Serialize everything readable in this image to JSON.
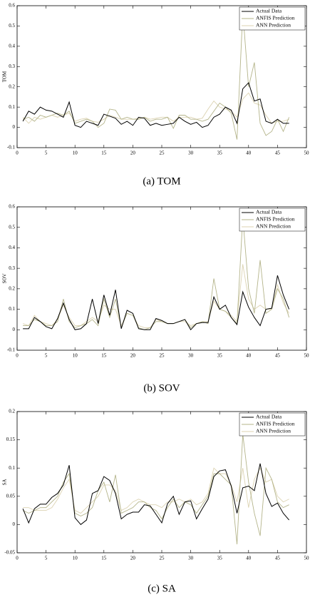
{
  "chart_data": [
    {
      "type": "line",
      "ylabel": "TOM",
      "caption": "(a) TOM",
      "legend": "upper right",
      "xlim": [
        0,
        50
      ],
      "ylim": [
        -0.1,
        0.6
      ],
      "xticks": [
        0,
        5,
        10,
        15,
        20,
        25,
        30,
        35,
        40,
        45,
        50
      ],
      "yticks": [
        -0.1,
        0,
        0.1,
        0.2,
        0.3,
        0.4,
        0.5,
        0.6
      ],
      "x": [
        1,
        2,
        3,
        4,
        5,
        6,
        7,
        8,
        9,
        10,
        11,
        12,
        13,
        14,
        15,
        16,
        17,
        18,
        19,
        20,
        21,
        22,
        23,
        24,
        25,
        26,
        27,
        28,
        29,
        30,
        31,
        32,
        33,
        34,
        35,
        36,
        37,
        38,
        39,
        40,
        41,
        42,
        43,
        44,
        45,
        46,
        47
      ],
      "series": [
        {
          "name": "Actual Data",
          "color": "#000000",
          "values": [
            0.03,
            0.08,
            0.065,
            0.1,
            0.085,
            0.08,
            0.065,
            0.05,
            0.125,
            0.01,
            0.0,
            0.03,
            0.02,
            0.01,
            0.065,
            0.055,
            0.045,
            0.015,
            0.03,
            0.01,
            0.05,
            0.045,
            0.01,
            0.02,
            0.01,
            0.015,
            0.02,
            0.05,
            0.03,
            0.015,
            0.025,
            0.0,
            0.01,
            0.05,
            0.065,
            0.1,
            0.085,
            0.02,
            0.19,
            0.22,
            0.13,
            0.14,
            0.03,
            0.02,
            0.04,
            0.02,
            0.02
          ]
        },
        {
          "name": "ANFIS Prediction",
          "color": "#b4b48a",
          "values": [
            0.04,
            0.05,
            0.03,
            0.06,
            0.05,
            0.06,
            0.07,
            0.06,
            0.08,
            0.02,
            0.03,
            0.04,
            0.03,
            0.0,
            0.02,
            0.09,
            0.085,
            0.04,
            0.05,
            0.04,
            0.04,
            0.05,
            0.03,
            0.04,
            0.04,
            0.05,
            -0.005,
            0.06,
            0.06,
            0.04,
            0.04,
            0.03,
            0.04,
            0.08,
            0.12,
            0.1,
            0.07,
            -0.06,
            0.57,
            0.2,
            0.32,
            0.02,
            -0.04,
            -0.02,
            0.04,
            -0.02,
            0.05
          ]
        },
        {
          "name": "ANN Prediction",
          "color": "#dcd3b2",
          "values": [
            0.05,
            0.02,
            0.05,
            0.04,
            0.05,
            0.06,
            0.05,
            0.06,
            0.07,
            0.03,
            0.04,
            0.045,
            0.03,
            0.025,
            0.04,
            0.06,
            0.05,
            0.04,
            0.04,
            0.04,
            0.045,
            0.05,
            0.04,
            0.045,
            0.05,
            0.05,
            0.03,
            0.05,
            0.05,
            0.05,
            0.04,
            0.045,
            0.09,
            0.13,
            0.1,
            0.09,
            0.08,
            0.05,
            0.14,
            0.17,
            0.12,
            0.11,
            0.06,
            0.02,
            0.03,
            0.03,
            0.04
          ]
        }
      ]
    },
    {
      "type": "line",
      "ylabel": "SOV",
      "caption": "(b) SOV",
      "legend": "upper right",
      "xlim": [
        0,
        50
      ],
      "ylim": [
        -0.1,
        0.6
      ],
      "xticks": [
        0,
        5,
        10,
        15,
        20,
        25,
        30,
        35,
        40,
        45,
        50
      ],
      "yticks": [
        -0.1,
        0,
        0.1,
        0.2,
        0.3,
        0.4,
        0.5,
        0.6
      ],
      "x": [
        1,
        2,
        3,
        4,
        5,
        6,
        7,
        8,
        9,
        10,
        11,
        12,
        13,
        14,
        15,
        16,
        17,
        18,
        19,
        20,
        21,
        22,
        23,
        24,
        25,
        26,
        27,
        28,
        29,
        30,
        31,
        32,
        33,
        34,
        35,
        36,
        37,
        38,
        39,
        40,
        41,
        42,
        43,
        44,
        45,
        46,
        47
      ],
      "series": [
        {
          "name": "Actual Data",
          "color": "#000000",
          "values": [
            0.005,
            0.005,
            0.06,
            0.04,
            0.015,
            0.005,
            0.055,
            0.13,
            0.05,
            0.0,
            0.005,
            0.03,
            0.15,
            0.03,
            0.17,
            0.07,
            0.195,
            0.005,
            0.095,
            0.08,
            0.005,
            0.0,
            0.0,
            0.055,
            0.045,
            0.03,
            0.03,
            0.04,
            0.05,
            0.0,
            0.03,
            0.035,
            0.035,
            0.16,
            0.1,
            0.12,
            0.06,
            0.025,
            0.185,
            0.11,
            0.06,
            0.02,
            0.1,
            0.105,
            0.265,
            0.17,
            0.1
          ]
        },
        {
          "name": "ANFIS Prediction",
          "color": "#b4b48a",
          "values": [
            0.02,
            0.02,
            0.05,
            0.04,
            0.02,
            0.02,
            0.04,
            0.15,
            0.04,
            0.01,
            0.02,
            0.03,
            0.05,
            0.02,
            0.15,
            0.06,
            0.15,
            0.01,
            0.08,
            0.07,
            0.01,
            0.0,
            0.01,
            0.04,
            0.04,
            0.03,
            0.03,
            0.04,
            0.05,
            0.01,
            0.03,
            0.04,
            0.03,
            0.25,
            0.1,
            0.09,
            0.06,
            0.03,
            0.55,
            0.2,
            0.08,
            0.34,
            0.08,
            0.1,
            0.2,
            0.15,
            0.06
          ]
        },
        {
          "name": "ANN Prediction",
          "color": "#dcd3b2",
          "values": [
            0.03,
            0.02,
            0.07,
            0.04,
            0.03,
            0.02,
            0.05,
            0.12,
            0.06,
            0.02,
            0.02,
            0.04,
            0.06,
            0.04,
            0.12,
            0.1,
            0.1,
            0.02,
            0.08,
            0.07,
            0.02,
            0.01,
            0.01,
            0.05,
            0.04,
            0.03,
            0.03,
            0.04,
            0.04,
            0.02,
            0.03,
            0.04,
            0.04,
            0.14,
            0.1,
            0.09,
            0.07,
            0.04,
            0.32,
            0.15,
            0.1,
            0.12,
            0.1,
            0.1,
            0.22,
            0.13,
            0.08
          ]
        }
      ]
    },
    {
      "type": "line",
      "ylabel": "SA",
      "caption": "(c) SA",
      "legend": "upper right",
      "xlim": [
        0,
        50
      ],
      "ylim": [
        -0.05,
        0.2
      ],
      "xticks": [
        0,
        5,
        10,
        15,
        20,
        25,
        30,
        35,
        40,
        45,
        50
      ],
      "yticks": [
        -0.05,
        0,
        0.05,
        0.1,
        0.15,
        0.2
      ],
      "x": [
        1,
        2,
        3,
        4,
        5,
        6,
        7,
        8,
        9,
        10,
        11,
        12,
        13,
        14,
        15,
        16,
        17,
        18,
        19,
        20,
        21,
        22,
        23,
        24,
        25,
        26,
        27,
        28,
        29,
        30,
        31,
        32,
        33,
        34,
        35,
        36,
        37,
        38,
        39,
        40,
        41,
        42,
        43,
        44,
        45,
        46,
        47
      ],
      "series": [
        {
          "name": "Actual Data",
          "color": "#000000",
          "values": [
            0.028,
            0.003,
            0.028,
            0.036,
            0.036,
            0.048,
            0.055,
            0.07,
            0.105,
            0.012,
            0.0,
            0.008,
            0.055,
            0.06,
            0.085,
            0.078,
            0.055,
            0.01,
            0.018,
            0.022,
            0.022,
            0.035,
            0.033,
            0.018,
            0.003,
            0.037,
            0.05,
            0.018,
            0.04,
            0.042,
            0.01,
            0.028,
            0.045,
            0.085,
            0.095,
            0.097,
            0.068,
            0.02,
            0.065,
            0.068,
            0.06,
            0.108,
            0.055,
            0.032,
            0.038,
            0.02,
            0.008
          ]
        },
        {
          "name": "ANFIS Prediction",
          "color": "#b4b48a",
          "values": [
            0.025,
            0.02,
            0.025,
            0.03,
            0.03,
            0.04,
            0.05,
            0.075,
            0.09,
            0.02,
            0.015,
            0.02,
            0.03,
            0.06,
            0.075,
            0.04,
            0.088,
            0.02,
            0.025,
            0.03,
            0.04,
            0.04,
            0.03,
            0.025,
            0.01,
            0.03,
            0.045,
            0.03,
            0.04,
            0.035,
            0.02,
            0.035,
            0.05,
            0.09,
            0.09,
            0.08,
            0.07,
            -0.035,
            0.16,
            0.075,
            0.02,
            -0.02,
            0.1,
            0.08,
            0.04,
            0.03,
            0.035
          ]
        },
        {
          "name": "ANN Prediction",
          "color": "#dcd3b2",
          "values": [
            0.03,
            0.03,
            0.025,
            0.025,
            0.025,
            0.03,
            0.045,
            0.065,
            0.08,
            0.025,
            0.02,
            0.03,
            0.04,
            0.05,
            0.07,
            0.07,
            0.06,
            0.025,
            0.03,
            0.04,
            0.045,
            0.04,
            0.035,
            0.035,
            0.03,
            0.04,
            0.04,
            0.045,
            0.04,
            0.045,
            0.035,
            0.04,
            0.055,
            0.1,
            0.09,
            0.09,
            0.07,
            0.04,
            0.1,
            0.03,
            0.08,
            0.1,
            0.075,
            0.08,
            0.05,
            0.04,
            0.045
          ]
        }
      ]
    }
  ]
}
